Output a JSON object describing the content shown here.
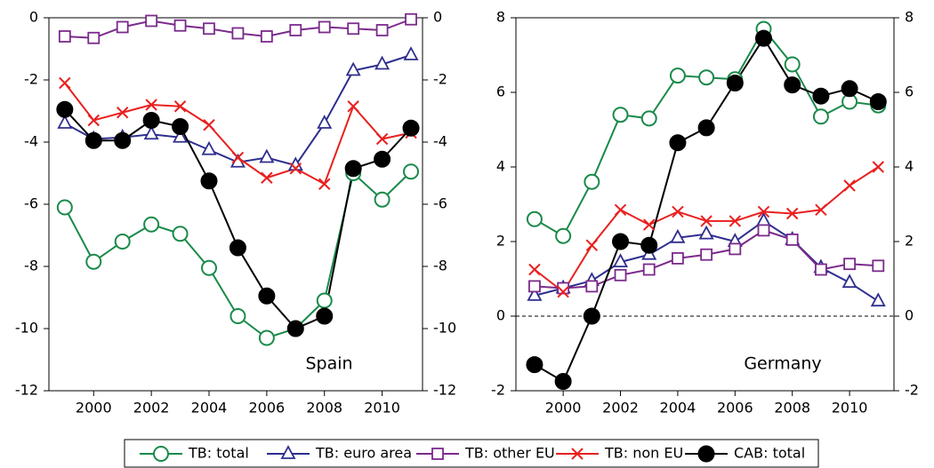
{
  "chart_data": [
    {
      "type": "line",
      "label": "Spain",
      "x": [
        1999,
        2000,
        2001,
        2002,
        2003,
        2004,
        2005,
        2006,
        2007,
        2008,
        2009,
        2010,
        2011
      ],
      "xlim": [
        1998.45,
        2011.4
      ],
      "xticks": [
        2000,
        2002,
        2004,
        2006,
        2008,
        2010
      ],
      "ylim": [
        -12,
        0
      ],
      "yticks": [
        -12,
        -10,
        -8,
        -6,
        -4,
        -2,
        0
      ],
      "series": [
        {
          "name": "TB: total",
          "color": "#1a8a4a",
          "marker": "circle",
          "values": [
            -6.1,
            -7.85,
            -7.2,
            -6.65,
            -6.95,
            -8.05,
            -9.6,
            -10.3,
            -10.0,
            -9.1,
            -5.0,
            -5.85,
            -4.95
          ]
        },
        {
          "name": "TB: euro area",
          "color": "#2e2e8f",
          "marker": "triangle",
          "values": [
            -3.4,
            -3.9,
            -3.85,
            -3.75,
            -3.85,
            -4.25,
            -4.65,
            -4.5,
            -4.75,
            -3.4,
            -1.7,
            -1.5,
            -1.2
          ]
        },
        {
          "name": "TB: other EU",
          "color": "#7b2a8c",
          "marker": "square",
          "values": [
            -0.6,
            -0.65,
            -0.3,
            -0.1,
            -0.25,
            -0.35,
            -0.5,
            -0.6,
            -0.4,
            -0.3,
            -0.35,
            -0.4,
            -0.05
          ]
        },
        {
          "name": "TB: non EU",
          "color": "#e8201f",
          "marker": "x",
          "values": [
            -2.1,
            -3.3,
            -3.05,
            -2.8,
            -2.85,
            -3.45,
            -4.5,
            -5.15,
            -4.85,
            -5.35,
            -2.85,
            -3.9,
            -3.7
          ]
        },
        {
          "name": "CAB: total",
          "color": "#000000",
          "marker": "dot",
          "values": [
            -2.95,
            -3.95,
            -3.95,
            -3.3,
            -3.5,
            -5.25,
            -7.4,
            -8.95,
            -10.0,
            -9.6,
            -4.85,
            -4.55,
            -3.55
          ]
        }
      ]
    },
    {
      "type": "line",
      "label": "Germany",
      "x": [
        1999,
        2000,
        2001,
        2002,
        2003,
        2004,
        2005,
        2006,
        2007,
        2008,
        2009,
        2010,
        2011
      ],
      "xlim": [
        1998.35,
        2011.55
      ],
      "xticks": [
        2000,
        2002,
        2004,
        2006,
        2008,
        2010
      ],
      "ylim": [
        -2,
        8
      ],
      "yticks": [
        -2,
        0,
        2,
        4,
        6,
        8
      ],
      "hline": 0,
      "series": [
        {
          "name": "TB: total",
          "color": "#1a8a4a",
          "marker": "circle",
          "values": [
            2.6,
            2.15,
            3.6,
            5.4,
            5.3,
            6.45,
            6.4,
            6.35,
            7.7,
            6.75,
            5.35,
            5.75,
            5.65
          ]
        },
        {
          "name": "TB: euro area",
          "color": "#2e2e8f",
          "marker": "triangle",
          "values": [
            0.55,
            0.75,
            0.95,
            1.45,
            1.65,
            2.1,
            2.2,
            2.0,
            2.55,
            2.05,
            1.3,
            0.9,
            0.4
          ]
        },
        {
          "name": "TB: other EU",
          "color": "#7b2a8c",
          "marker": "square",
          "values": [
            0.8,
            0.75,
            0.8,
            1.1,
            1.25,
            1.55,
            1.65,
            1.8,
            2.3,
            2.05,
            1.25,
            1.4,
            1.35
          ]
        },
        {
          "name": "TB: non EU",
          "color": "#e8201f",
          "marker": "x",
          "values": [
            1.25,
            0.65,
            1.9,
            2.85,
            2.45,
            2.8,
            2.55,
            2.55,
            2.8,
            2.75,
            2.85,
            3.5,
            4.0
          ]
        },
        {
          "name": "CAB: total",
          "color": "#000000",
          "marker": "dot",
          "values": [
            -1.3,
            -1.75,
            0.0,
            2.0,
            1.9,
            4.65,
            5.05,
            6.25,
            7.45,
            6.2,
            5.9,
            6.1,
            5.75
          ]
        }
      ]
    }
  ]
}
